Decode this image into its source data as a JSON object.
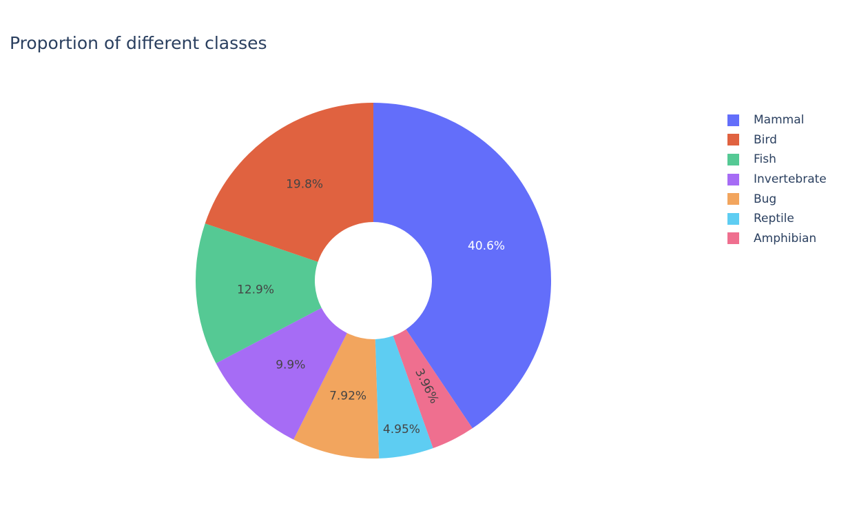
{
  "chart_data": {
    "type": "pie",
    "hole": true,
    "title": "Proportion of different classes",
    "legend_position": "top-right",
    "slices": [
      {
        "label": "Mammal",
        "value": 40.6,
        "text": "40.6%",
        "color": "#636efa",
        "text_color": "#ffffff"
      },
      {
        "label": "Amphibian",
        "value": 3.96,
        "text": "3.96%",
        "color": "#ef6f8f",
        "text_color": "#444444"
      },
      {
        "label": "Reptile",
        "value": 4.95,
        "text": "4.95%",
        "color": "#5ecdf2",
        "text_color": "#444444"
      },
      {
        "label": "Bug",
        "value": 7.92,
        "text": "7.92%",
        "color": "#f2a55e",
        "text_color": "#444444"
      },
      {
        "label": "Invertebrate",
        "value": 9.9,
        "text": "9.9%",
        "color": "#a66cf5",
        "text_color": "#444444"
      },
      {
        "label": "Fish",
        "value": 12.9,
        "text": "12.9%",
        "color": "#55c994",
        "text_color": "#444444"
      },
      {
        "label": "Bird",
        "value": 19.8,
        "text": "19.8%",
        "color": "#e06240",
        "text_color": "#444444"
      }
    ],
    "legend": [
      {
        "label": "Mammal",
        "color": "#636efa"
      },
      {
        "label": "Bird",
        "color": "#e06240"
      },
      {
        "label": "Fish",
        "color": "#55c994"
      },
      {
        "label": "Invertebrate",
        "color": "#a66cf5"
      },
      {
        "label": "Bug",
        "color": "#f2a55e"
      },
      {
        "label": "Reptile",
        "color": "#5ecdf2"
      },
      {
        "label": "Amphibian",
        "color": "#ef6f8f"
      }
    ]
  }
}
